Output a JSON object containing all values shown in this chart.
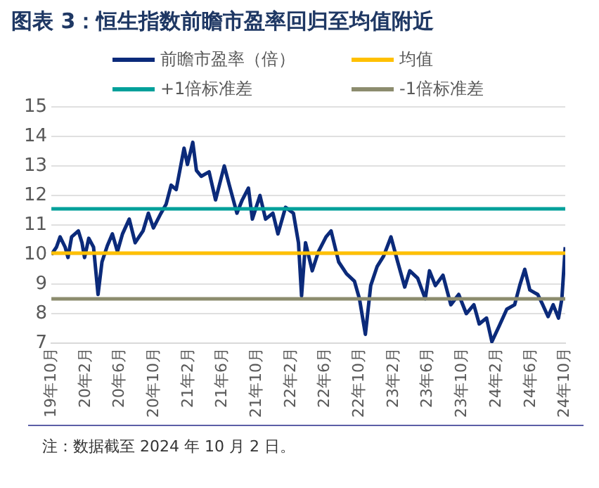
{
  "chart_data": {
    "type": "line",
    "title": "图表 3：恒生指数前瞻市盈率回归至均值附近",
    "x": [
      "2019-10-01",
      "2019-10-19",
      "2019-11-01",
      "2019-11-19",
      "2019-11-29",
      "2019-12-12",
      "2020-01-05",
      "2020-01-18",
      "2020-01-27",
      "2020-02-11",
      "2020-02-28",
      "2020-03-15",
      "2020-03-29",
      "2020-04-17",
      "2020-05-05",
      "2020-05-23",
      "2020-06-10",
      "2020-07-04",
      "2020-07-25",
      "2020-08-22",
      "2020-09-10",
      "2020-09-28",
      "2020-10-25",
      "2020-11-12",
      "2020-11-30",
      "2020-12-18",
      "2021-01-15",
      "2021-01-27",
      "2021-02-15",
      "2021-02-28",
      "2021-03-17",
      "2021-04-14",
      "2021-05-07",
      "2021-06-07",
      "2021-06-25",
      "2021-07-22",
      "2021-08-10",
      "2021-09-01",
      "2021-09-15",
      "2021-10-12",
      "2021-11-01",
      "2021-11-27",
      "2021-12-15",
      "2022-01-11",
      "2022-02-08",
      "2022-02-26",
      "2022-03-09",
      "2022-03-23",
      "2022-04-16",
      "2022-05-08",
      "2022-06-04",
      "2022-06-22",
      "2022-07-19",
      "2022-08-16",
      "2022-09-13",
      "2022-10-01",
      "2022-10-22",
      "2022-11-10",
      "2022-12-03",
      "2022-12-26",
      "2023-01-21",
      "2023-02-14",
      "2023-03-11",
      "2023-03-29",
      "2023-04-26",
      "2023-05-23",
      "2023-06-07",
      "2023-06-28",
      "2023-07-25",
      "2023-08-22",
      "2023-09-19",
      "2023-10-16",
      "2023-11-12",
      "2023-12-01",
      "2023-12-27",
      "2024-01-15",
      "2024-02-11",
      "2024-03-08",
      "2024-04-05",
      "2024-04-23",
      "2024-05-11",
      "2024-05-29",
      "2024-06-26",
      "2024-07-14",
      "2024-08-02",
      "2024-08-20",
      "2024-09-08",
      "2024-09-20",
      "2024-10-02"
    ],
    "series": [
      {
        "name": "前瞻市盈率（倍）",
        "color": "#0b2a7a",
        "values": [
          10.0,
          10.25,
          10.6,
          10.25,
          9.9,
          10.6,
          10.8,
          10.4,
          9.9,
          10.55,
          10.25,
          8.65,
          9.75,
          10.3,
          10.7,
          10.1,
          10.7,
          11.2,
          10.4,
          10.8,
          11.4,
          10.9,
          11.4,
          11.7,
          12.35,
          12.2,
          13.6,
          13.05,
          13.8,
          12.85,
          12.65,
          12.8,
          11.85,
          13.0,
          12.35,
          11.4,
          11.85,
          12.25,
          11.2,
          12.0,
          11.2,
          11.4,
          10.7,
          11.6,
          11.4,
          10.4,
          8.6,
          10.4,
          9.45,
          10.1,
          10.6,
          10.8,
          9.75,
          9.35,
          9.1,
          8.5,
          7.3,
          8.95,
          9.6,
          9.95,
          10.6,
          9.75,
          8.9,
          9.45,
          9.2,
          8.5,
          9.45,
          8.95,
          9.3,
          8.3,
          8.65,
          8.0,
          8.3,
          7.65,
          7.85,
          7.05,
          7.6,
          8.15,
          8.3,
          8.95,
          9.5,
          8.8,
          8.65,
          8.3,
          7.9,
          8.3,
          7.85,
          8.5,
          10.25
        ]
      }
    ],
    "ref_lines": [
      {
        "axis": "y",
        "value": 10.05,
        "label": "均值",
        "color": "#ffc000"
      },
      {
        "axis": "y",
        "value": 11.55,
        "label": "+1倍标准差",
        "color": "#00a09a"
      },
      {
        "axis": "y",
        "value": 8.5,
        "label": "-1倍标准差",
        "color": "#8c8c6e"
      }
    ],
    "xlim": [
      "2019-10-01",
      "2024-10-02"
    ],
    "xticks": [
      {
        "value": "2019-10",
        "label": "19年10月"
      },
      {
        "value": "2020-02",
        "label": "20年2月"
      },
      {
        "value": "2020-06",
        "label": "20年6月"
      },
      {
        "value": "2020-10",
        "label": "20年10月"
      },
      {
        "value": "2021-02",
        "label": "21年2月"
      },
      {
        "value": "2021-06",
        "label": "21年6月"
      },
      {
        "value": "2021-10",
        "label": "21年10月"
      },
      {
        "value": "2022-02",
        "label": "22年2月"
      },
      {
        "value": "2022-06",
        "label": "22年6月"
      },
      {
        "value": "2022-10",
        "label": "22年10月"
      },
      {
        "value": "2023-02",
        "label": "23年2月"
      },
      {
        "value": "2023-06",
        "label": "23年6月"
      },
      {
        "value": "2023-10",
        "label": "23年10月"
      },
      {
        "value": "2024-02",
        "label": "24年2月"
      },
      {
        "value": "2024-06",
        "label": "24年6月"
      },
      {
        "value": "2024-10",
        "label": "24年10月"
      }
    ],
    "ylim": [
      7,
      15
    ],
    "yticks": [
      7,
      8,
      9,
      10,
      11,
      12,
      13,
      14,
      15
    ],
    "grid": "y",
    "legend": "top",
    "marker": "none",
    "line_style": "solid",
    "annotations": [
      "注：数据截至 2024 年 10 月 2 日。"
    ]
  }
}
